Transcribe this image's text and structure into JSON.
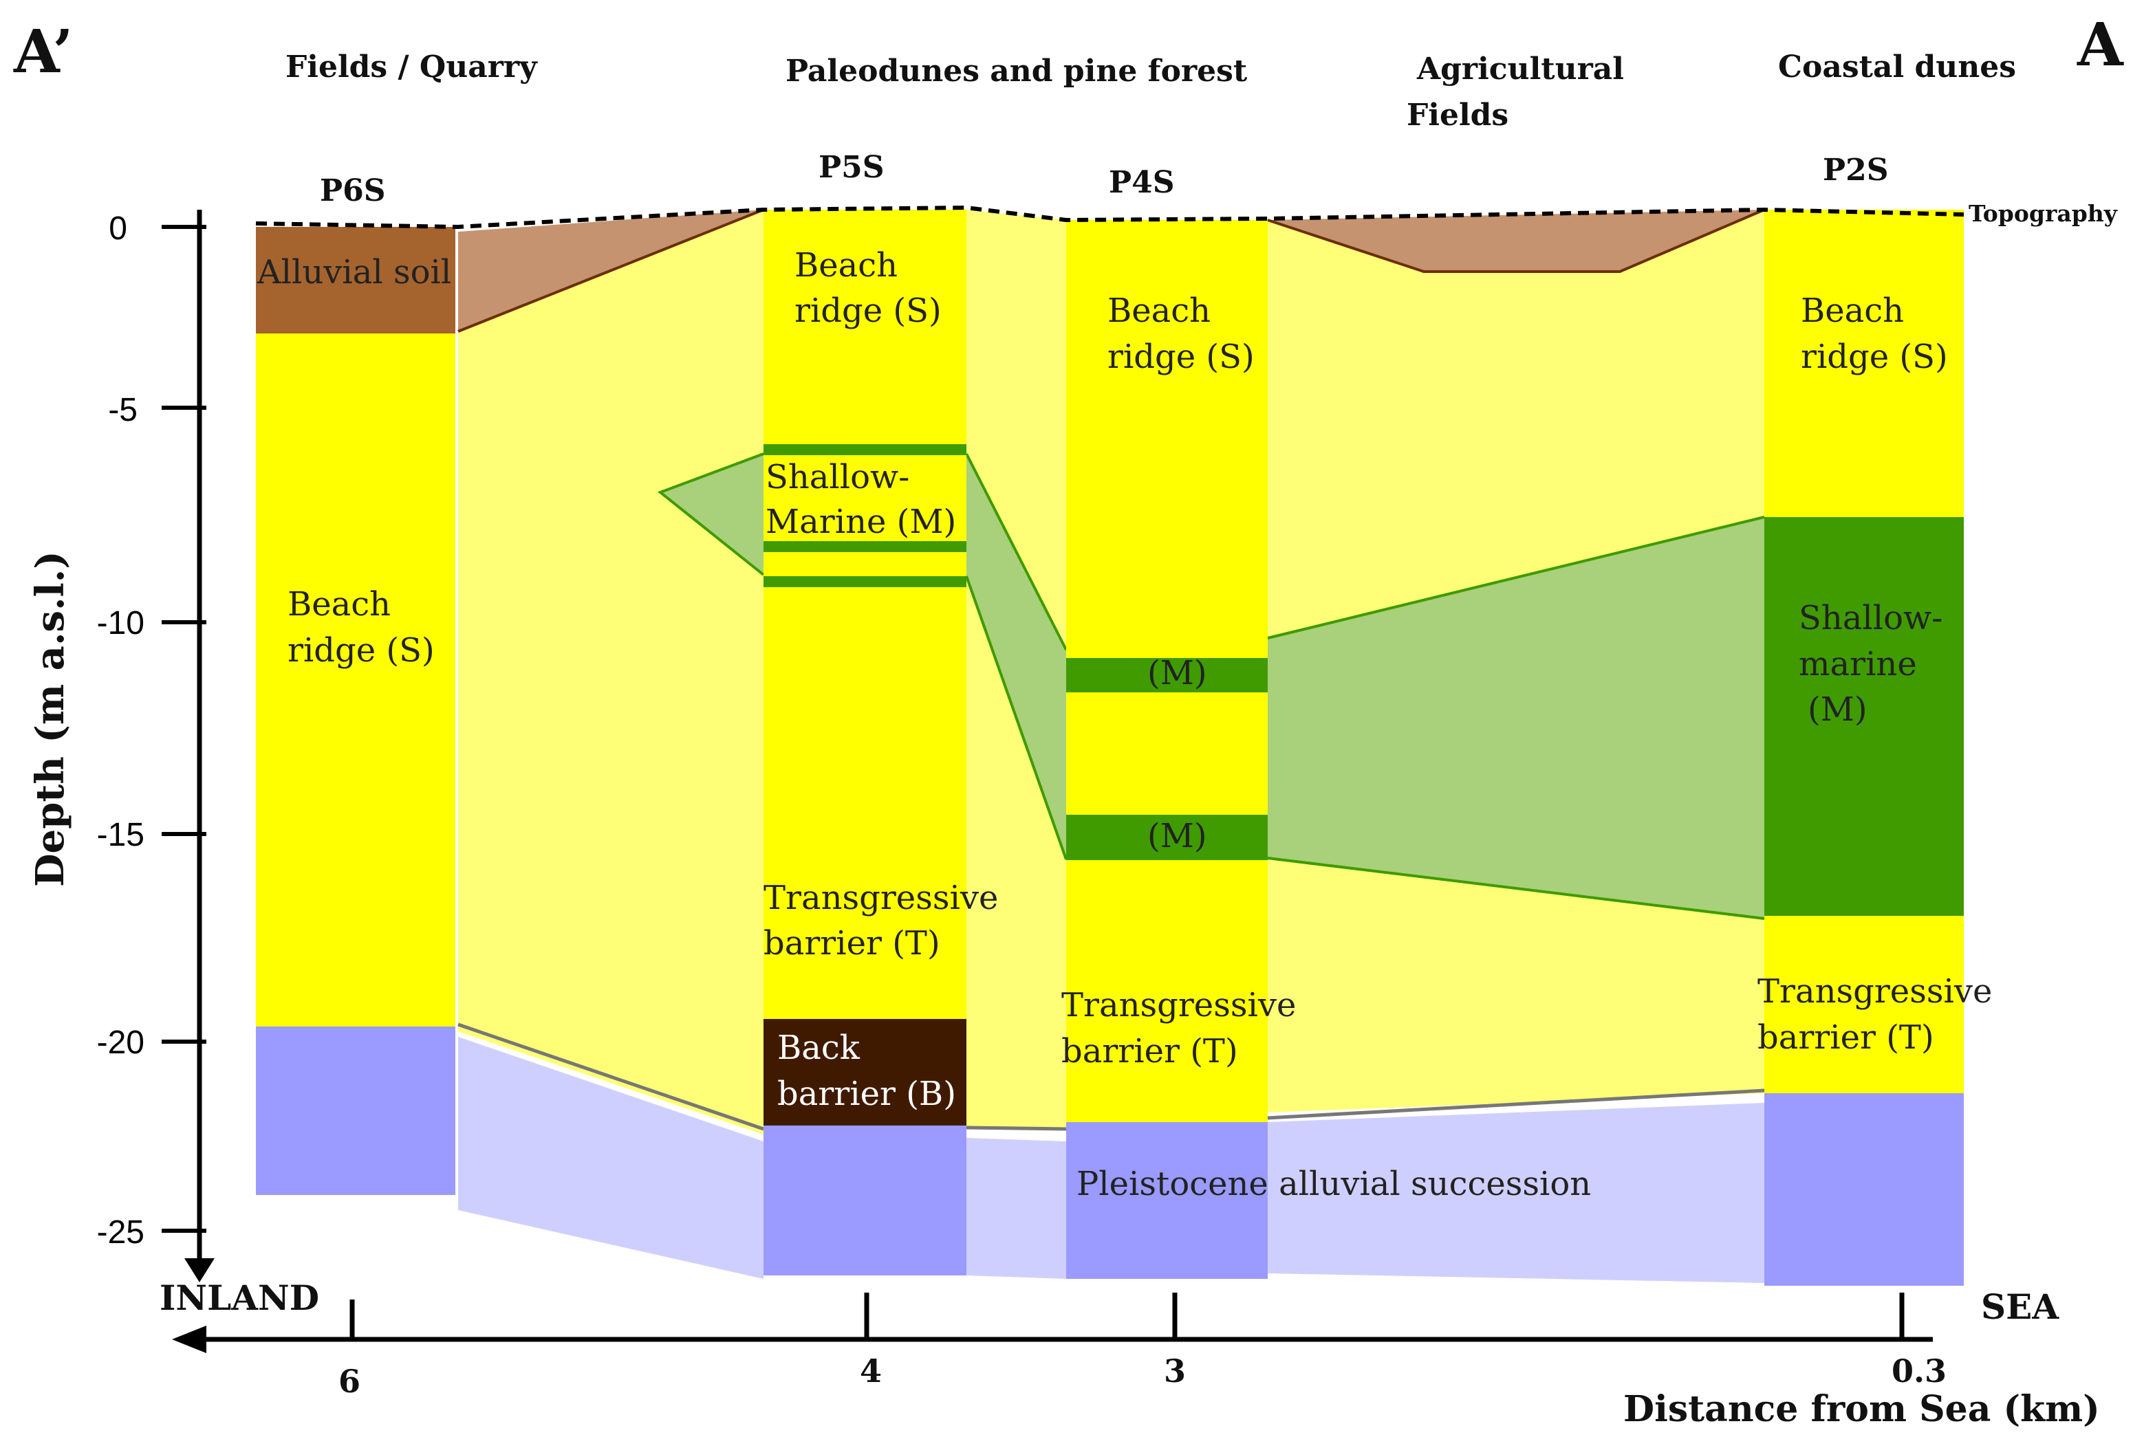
{
  "title": {
    "left_marker": "A’",
    "right_marker": "A"
  },
  "areas": {
    "fields_quarry": "Fields / Quarry",
    "paleodunes": "Paleodunes and pine forest",
    "agricultural_line1": "Agricultural",
    "agricultural_line2": "Fields",
    "coastal_dunes": "Coastal dunes"
  },
  "sections": {
    "p6s": "P6S",
    "p5s": "P5S",
    "p4s": "P4S",
    "p2s": "P2S"
  },
  "topography": "Topography",
  "units": {
    "alluvial_soil": "Alluvial soil",
    "beach_ridge_line1": "Beach",
    "beach_ridge_s_line2": "ridge (S)",
    "beach_ridge_s_alt": "ridge (S)",
    "shallow_marine_line1": "Shallow-",
    "shallow_marine_line2": "Marine  (M)",
    "shallow_marine_p2s_line1": "Shallow-",
    "shallow_marine_p2s_line2": "marine",
    "shallow_marine_p2s_line3": "(M)",
    "m_label": "(M)",
    "transgressive_line1": "Transgressive",
    "transgressive_line2": "barrier (T)",
    "back_barrier_line1": "Back",
    "back_barrier_line2": "barrier (B)",
    "pleistocene": "Pleistocene alluvial succession"
  },
  "axes": {
    "y_label": "Depth (m a.s.l.)",
    "y_ticks": [
      "0",
      "-5",
      "-10",
      "-15",
      "-20",
      "-25"
    ],
    "x_label": "Distance from Sea (km)",
    "x_ticks": [
      "6",
      "4",
      "3",
      "0.3"
    ],
    "inland": "INLAND",
    "sea": "SEA"
  },
  "colors": {
    "yellow": "#ffff00",
    "pale_yellow": "#ffff77",
    "brown": "#a5632e",
    "pale_brown": "#c69370",
    "dark_green": "#3f9b00",
    "pale_green": "#a9d07a",
    "blue": "#9a9aff",
    "pale_blue": "#cfcfff",
    "back_barrier": "#401a00"
  }
}
